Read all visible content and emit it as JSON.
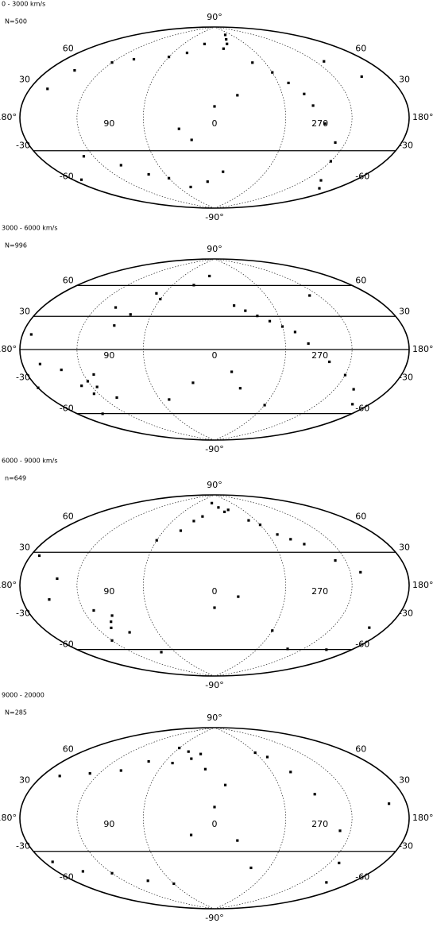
{
  "chart_data": [
    {
      "type": "scatter",
      "title": "0 - 3000 km/s",
      "subtitle": "N=500",
      "xlim": [
        0,
        360
      ],
      "ylim": [
        -90,
        90
      ],
      "xticks": [
        {
          "value": 180,
          "label": "180°"
        },
        90,
        0,
        270
      ],
      "yticks": [
        {
          "value": 90,
          "label": "90°"
        },
        60,
        30,
        -30,
        -60,
        {
          "value": -90,
          "label": "-90°"
        }
      ],
      "lines": [
        -30
      ],
      "x": [
        330,
        335,
        320,
        345,
        20,
        40,
        60,
        100,
        120,
        150,
        160,
        300,
        290,
        280,
        275,
        265,
        250,
        240,
        220,
        200,
        100,
        80,
        60,
        40,
        10,
        350,
        20,
        30,
        0,
        340,
        315,
        230,
        210,
        130,
        170
      ],
      "values": [
        75,
        70,
        80,
        65,
        70,
        60,
        55,
        50,
        45,
        35,
        20,
        40,
        30,
        20,
        10,
        -5,
        -20,
        -35,
        -50,
        -55,
        -40,
        -50,
        -55,
        -65,
        -60,
        -50,
        -20,
        -10,
        10,
        20,
        50,
        45,
        30,
        -30,
        -45
      ]
    },
    {
      "type": "scatter",
      "title": "3000 - 6000 km/s",
      "subtitle": "N=996",
      "xlim": [
        0,
        360
      ],
      "ylim": [
        -90,
        90
      ],
      "xticks": [
        {
          "value": 180,
          "label": "180°"
        },
        90,
        0,
        270
      ],
      "yticks": [
        {
          "value": 90,
          "label": "90°"
        },
        60,
        30,
        -30,
        -60,
        {
          "value": -90,
          "label": "-90°"
        }
      ],
      "lines": [
        60,
        30,
        0,
        -60
      ],
      "x": [
        120,
        115,
        110,
        125,
        130,
        105,
        140,
        150,
        160,
        90,
        80,
        60,
        30,
        10,
        340,
        330,
        320,
        310,
        300,
        290,
        280,
        260,
        240,
        220,
        200,
        180,
        170,
        20,
        50,
        345,
        335,
        300,
        250,
        100,
        70
      ],
      "values": [
        -25,
        -30,
        -20,
        -35,
        -28,
        -40,
        -15,
        -50,
        -10,
        20,
        30,
        45,
        60,
        70,
        40,
        35,
        30,
        25,
        20,
        15,
        5,
        -10,
        -20,
        -30,
        -40,
        -25,
        10,
        -30,
        -45,
        -20,
        -35,
        -50,
        45,
        35,
        50
      ]
    },
    {
      "type": "scatter",
      "title": "6000 - 9000 km/s",
      "subtitle": "n=649",
      "xlim": [
        0,
        360
      ],
      "ylim": [
        -90,
        90
      ],
      "xticks": [
        {
          "value": 180,
          "label": "180°"
        },
        90,
        0,
        270
      ],
      "yticks": [
        {
          "value": 90,
          "label": "90°"
        },
        60,
        30,
        -30,
        -60,
        {
          "value": -90,
          "label": "-90°"
        }
      ],
      "lines": [
        30,
        -60
      ],
      "x": [
        10,
        350,
        340,
        330,
        20,
        30,
        310,
        300,
        290,
        280,
        270,
        250,
        230,
        100,
        95,
        105,
        110,
        90,
        120,
        150,
        170,
        200,
        210,
        60,
        40,
        0,
        340,
        300,
        260,
        140,
        80
      ],
      "values": [
        80,
        75,
        70,
        72,
        65,
        60,
        60,
        55,
        45,
        40,
        35,
        20,
        10,
        -30,
        -25,
        -35,
        -20,
        -40,
        -45,
        -10,
        20,
        -30,
        -50,
        40,
        50,
        -20,
        -10,
        -40,
        -55,
        5,
        -60
      ]
    },
    {
      "type": "scatter",
      "title": "9000 - 20000",
      "subtitle": "N=285",
      "xlim": [
        0,
        360
      ],
      "ylim": [
        -90,
        90
      ],
      "xticks": [
        {
          "value": 180,
          "label": "180°"
        },
        90,
        0,
        270
      ],
      "yticks": [
        {
          "value": 90,
          "label": "90°"
        },
        60,
        30,
        -30,
        -60,
        {
          "value": -90,
          "label": "-90°"
        }
      ],
      "lines": [
        -30
      ],
      "x": [
        20,
        30,
        40,
        50,
        10,
        60,
        80,
        100,
        130,
        160,
        170,
        150,
        300,
        290,
        280,
        270,
        250,
        230,
        210,
        200,
        120,
        90,
        60,
        340,
        320,
        0,
        20,
        350
      ],
      "values": [
        60,
        55,
        62,
        50,
        45,
        65,
        50,
        40,
        35,
        30,
        -30,
        -40,
        60,
        55,
        40,
        20,
        -10,
        -35,
        -50,
        10,
        -45,
        -55,
        -60,
        -20,
        -45,
        10,
        -15,
        30
      ]
    }
  ]
}
